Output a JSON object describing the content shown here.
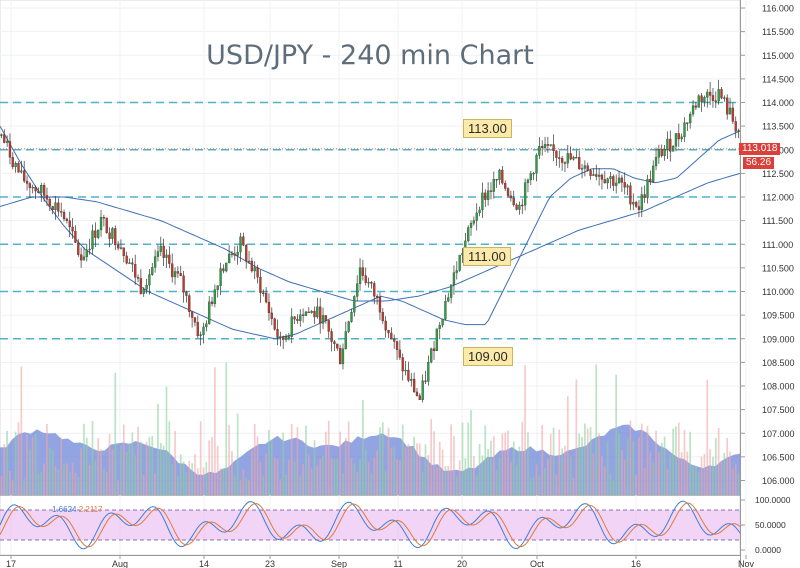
{
  "chart_data": {
    "type": "candlestick",
    "title": "USD/JPY - 240 min Chart",
    "y_axis": {
      "ticks": [
        "116.000",
        "115.500",
        "115.000",
        "114.500",
        "114.000",
        "113.500",
        "113.000",
        "112.500",
        "112.000",
        "111.500",
        "111.000",
        "110.500",
        "110.000",
        "109.500",
        "109.000",
        "108.500",
        "108.000",
        "107.500",
        "107.000",
        "106.500",
        "106.000"
      ],
      "ylim": [
        105.8,
        116.2
      ]
    },
    "x_axis": {
      "tick_labels": [
        "17",
        "Aug",
        "14",
        "23",
        "Sep",
        "11",
        "20",
        "Oct",
        "16",
        "Nov"
      ]
    },
    "horizontal_levels": [
      114.0,
      113.0,
      112.0,
      111.0,
      110.0,
      109.0
    ],
    "level_labels": [
      "113.00",
      "111.00",
      "109.00"
    ],
    "last_price": "113.018",
    "last_price_value": 113.018,
    "rsi_badge": "56.26",
    "price_path": [
      113.3,
      112.4,
      112.1,
      111.7,
      110.7,
      111.5,
      111.0,
      110.1,
      110.8,
      110.2,
      109.0,
      110.5,
      111.0,
      110.1,
      108.9,
      109.6,
      109.5,
      108.6,
      110.5,
      109.7,
      108.5,
      107.7,
      109.4,
      110.7,
      111.9,
      112.4,
      111.8,
      113.0,
      112.9,
      112.7,
      112.5,
      112.3,
      111.8,
      112.9,
      113.3,
      114.1,
      114.2,
      113.4
    ],
    "ma_fast_path": [
      113.5,
      112.7,
      112.0,
      111.4,
      110.9,
      110.6,
      110.3,
      110.0,
      109.8,
      109.6,
      109.4,
      109.2,
      109.1,
      109.0,
      109.1,
      109.3,
      109.5,
      109.7,
      109.9,
      109.8,
      109.6,
      109.4,
      109.3,
      109.3,
      110.2,
      111.1,
      112.0,
      112.4,
      112.6,
      112.6,
      112.4,
      112.3,
      112.4,
      112.8,
      113.2,
      113.4
    ],
    "ma_slow_path": [
      111.8,
      112.0,
      112.0,
      111.9,
      111.7,
      111.5,
      111.2,
      110.9,
      110.5,
      110.2,
      110.0,
      109.8,
      109.8,
      109.9,
      110.1,
      110.4,
      110.7,
      111.0,
      111.3,
      111.5,
      111.7,
      112.0,
      112.3,
      112.5
    ],
    "volume_seed": 7,
    "oscillator": {
      "ticks": [
        "100.0000",
        "50.0000",
        "0.0000"
      ],
      "levels": [
        20,
        80
      ],
      "k_value": "1.6624",
      "d_value": "2.2117"
    }
  }
}
